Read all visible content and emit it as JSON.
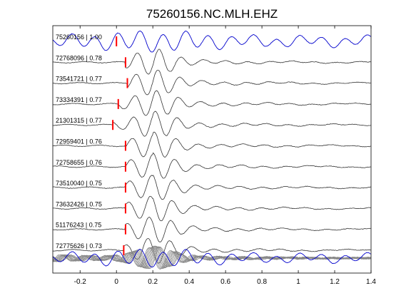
{
  "chart_data": {
    "type": "line",
    "title": "75260156.NC.MLH.EHZ",
    "xlabel": "",
    "ylabel": "",
    "xlim": [
      -0.35,
      1.4
    ],
    "x_ticks": [
      {
        "value": -0.2,
        "label": "-0.2"
      },
      {
        "value": 0,
        "label": "0"
      },
      {
        "value": 0.2,
        "label": "0.2"
      },
      {
        "value": 0.4,
        "label": "0.4"
      },
      {
        "value": 0.6,
        "label": "0.6"
      },
      {
        "value": 0.8,
        "label": "0.8"
      },
      {
        "value": 1.0,
        "label": "1"
      },
      {
        "value": 1.2,
        "label": "1.2"
      },
      {
        "value": 1.4,
        "label": "1.4"
      }
    ],
    "grid": false,
    "colors": {
      "reference": "#0000cc",
      "trace": "#333333",
      "stack": "#888888",
      "pick": "#ff0000",
      "axis": "#000000"
    },
    "series": [
      {
        "name": "75260156 | 1.00",
        "pick_time": 0.0,
        "reference": true
      },
      {
        "name": "72768096 | 0.78",
        "pick_time": 0.05
      },
      {
        "name": "73541721 | 0.77",
        "pick_time": 0.06
      },
      {
        "name": "73334391 | 0.77",
        "pick_time": 0.01
      },
      {
        "name": "21301315 | 0.77",
        "pick_time": -0.02
      },
      {
        "name": "72959401 | 0.76",
        "pick_time": 0.05
      },
      {
        "name": "72758655 | 0.76",
        "pick_time": 0.05
      },
      {
        "name": "73510040 | 0.75",
        "pick_time": 0.05
      },
      {
        "name": "73632426 | 0.75",
        "pick_time": 0.05
      },
      {
        "name": "51176243 | 0.75",
        "pick_time": 0.05
      },
      {
        "name": "72775626 | 0.73",
        "pick_time": 0.04
      }
    ]
  }
}
